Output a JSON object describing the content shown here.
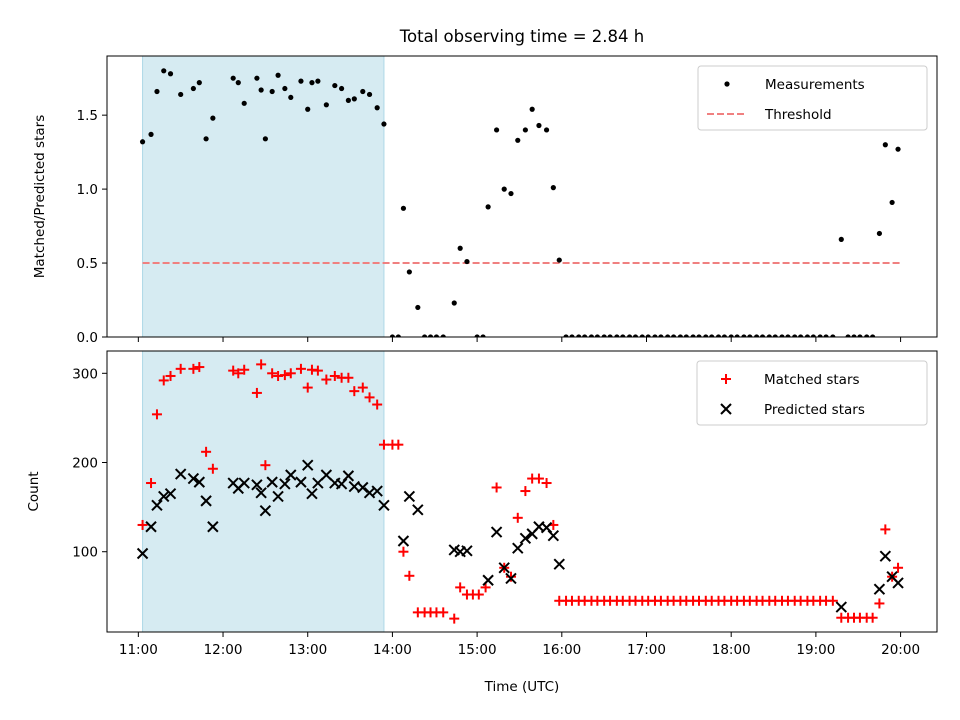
{
  "chart_data": [
    {
      "type": "scatter",
      "title": "Total observing time = 2.84 h",
      "ylabel": "Matched/Predicted stars",
      "xlabel": "",
      "xlim": [
        10.63,
        20.43
      ],
      "ylim": [
        0,
        1.9
      ],
      "x_ticks": [
        11,
        12,
        13,
        14,
        15,
        16,
        17,
        18,
        19,
        20
      ],
      "x_tick_labels": [
        "",
        "",
        "",
        "",
        "",
        "",
        "",
        "",
        "",
        ""
      ],
      "y_ticks": [
        0.0,
        0.5,
        1.0,
        1.5
      ],
      "y_tick_labels": [
        "0.0",
        "0.5",
        "1.0",
        "1.5"
      ],
      "shaded_span": [
        11.05,
        13.9
      ],
      "legend": {
        "position": "top-right",
        "entries": [
          "Measurements",
          "Threshold"
        ]
      },
      "threshold": {
        "name": "Threshold",
        "y": 0.5,
        "x_range": [
          11.05,
          20.0
        ],
        "color": "#f08080"
      },
      "series": [
        {
          "name": "Measurements",
          "marker": "dot",
          "color": "#000000",
          "x": [
            11.05,
            11.15,
            11.22,
            11.3,
            11.38,
            11.5,
            11.65,
            11.72,
            11.8,
            11.88,
            12.12,
            12.18,
            12.25,
            12.4,
            12.45,
            12.5,
            12.58,
            12.65,
            12.73,
            12.8,
            12.92,
            13.0,
            13.05,
            13.12,
            13.22,
            13.32,
            13.4,
            13.48,
            13.55,
            13.65,
            13.73,
            13.82,
            13.9,
            14.0,
            14.07,
            14.13,
            14.2,
            14.3,
            14.38,
            14.45,
            14.52,
            14.6,
            14.73,
            14.8,
            14.88,
            15.0,
            15.07,
            15.13,
            15.23,
            15.32,
            15.4,
            15.48,
            15.57,
            15.65,
            15.73,
            15.82,
            15.9,
            15.97,
            16.05,
            16.12,
            16.2,
            16.27,
            16.35,
            16.42,
            16.5,
            16.57,
            16.65,
            16.72,
            16.8,
            16.87,
            16.95,
            17.02,
            17.1,
            17.17,
            17.25,
            17.32,
            17.4,
            17.47,
            17.55,
            17.62,
            17.7,
            17.77,
            17.85,
            17.92,
            18.0,
            18.07,
            18.15,
            18.22,
            18.3,
            18.37,
            18.45,
            18.52,
            18.6,
            18.67,
            18.75,
            18.82,
            18.9,
            18.97,
            19.05,
            19.12,
            19.2,
            19.3,
            19.38,
            19.45,
            19.52,
            19.6,
            19.67,
            19.75,
            19.82,
            19.9,
            19.97
          ],
          "y": [
            1.32,
            1.37,
            1.66,
            1.8,
            1.78,
            1.64,
            1.68,
            1.72,
            1.34,
            1.48,
            1.75,
            1.72,
            1.58,
            1.75,
            1.67,
            1.34,
            1.66,
            1.77,
            1.68,
            1.62,
            1.73,
            1.54,
            1.72,
            1.73,
            1.57,
            1.7,
            1.68,
            1.6,
            1.61,
            1.66,
            1.64,
            1.55,
            1.44,
            0.0,
            0.0,
            0.87,
            0.44,
            0.2,
            0.0,
            0.0,
            0.0,
            0.0,
            0.23,
            0.6,
            0.51,
            0.0,
            0.0,
            0.88,
            1.4,
            1.0,
            0.97,
            1.33,
            1.4,
            1.54,
            1.43,
            1.4,
            1.01,
            0.52,
            0.0,
            0.0,
            0.0,
            0.0,
            0.0,
            0.0,
            0.0,
            0.0,
            0.0,
            0.0,
            0.0,
            0.0,
            0.0,
            0.0,
            0.0,
            0.0,
            0.0,
            0.0,
            0.0,
            0.0,
            0.0,
            0.0,
            0.0,
            0.0,
            0.0,
            0.0,
            0.0,
            0.0,
            0.0,
            0.0,
            0.0,
            0.0,
            0.0,
            0.0,
            0.0,
            0.0,
            0.0,
            0.0,
            0.0,
            0.0,
            0.0,
            0.0,
            0.0,
            0.66,
            0.0,
            0.0,
            0.0,
            0.0,
            0.0,
            0.7,
            1.3,
            0.91,
            1.27
          ]
        }
      ]
    },
    {
      "type": "scatter",
      "title": "",
      "ylabel": "Count",
      "xlabel": "Time (UTC)",
      "xlim": [
        10.63,
        20.43
      ],
      "ylim": [
        10,
        325
      ],
      "x_ticks": [
        11,
        12,
        13,
        14,
        15,
        16,
        17,
        18,
        19,
        20
      ],
      "x_tick_labels": [
        "11:00",
        "12:00",
        "13:00",
        "14:00",
        "15:00",
        "16:00",
        "17:00",
        "18:00",
        "19:00",
        "20:00"
      ],
      "y_ticks": [
        100,
        200,
        300
      ],
      "y_tick_labels": [
        "100",
        "200",
        "300"
      ],
      "shaded_span": [
        11.05,
        13.9
      ],
      "legend": {
        "position": "top-right",
        "entries": [
          "Matched stars",
          "Predicted stars"
        ]
      },
      "series": [
        {
          "name": "Matched stars",
          "marker": "plus",
          "color": "#ff0000",
          "x": [
            11.05,
            11.15,
            11.22,
            11.3,
            11.38,
            11.5,
            11.65,
            11.72,
            11.8,
            11.88,
            12.12,
            12.18,
            12.25,
            12.4,
            12.45,
            12.5,
            12.58,
            12.65,
            12.73,
            12.8,
            12.92,
            13.0,
            13.05,
            13.12,
            13.22,
            13.32,
            13.4,
            13.48,
            13.55,
            13.65,
            13.73,
            13.82,
            13.9,
            14.0,
            14.07,
            14.13,
            14.2,
            14.3,
            14.38,
            14.45,
            14.52,
            14.6,
            14.73,
            14.8,
            14.88,
            14.95,
            15.02,
            15.1,
            15.23,
            15.32,
            15.4,
            15.48,
            15.57,
            15.65,
            15.73,
            15.82,
            15.9,
            15.97,
            16.05,
            16.12,
            16.2,
            16.27,
            16.35,
            16.42,
            16.5,
            16.57,
            16.65,
            16.72,
            16.8,
            16.87,
            16.95,
            17.02,
            17.1,
            17.17,
            17.25,
            17.32,
            17.4,
            17.47,
            17.55,
            17.62,
            17.7,
            17.77,
            17.85,
            17.92,
            18.0,
            18.07,
            18.15,
            18.22,
            18.3,
            18.37,
            18.45,
            18.52,
            18.6,
            18.67,
            18.75,
            18.82,
            18.9,
            18.97,
            19.05,
            19.12,
            19.2,
            19.3,
            19.38,
            19.45,
            19.52,
            19.6,
            19.67,
            19.75,
            19.82,
            19.9,
            19.97
          ],
          "y": [
            130,
            177,
            254,
            292,
            297,
            305,
            305,
            307,
            212,
            193,
            303,
            300,
            304,
            278,
            310,
            197,
            300,
            297,
            298,
            300,
            305,
            284,
            304,
            303,
            293,
            297,
            295,
            295,
            280,
            284,
            273,
            265,
            220,
            220,
            220,
            100,
            73,
            32,
            32,
            32,
            32,
            32,
            25,
            60,
            52,
            52,
            52,
            60,
            172,
            82,
            72,
            138,
            168,
            182,
            182,
            177,
            130,
            45,
            45,
            45,
            45,
            45,
            45,
            45,
            45,
            45,
            45,
            45,
            45,
            45,
            45,
            45,
            45,
            45,
            45,
            45,
            45,
            45,
            45,
            45,
            45,
            45,
            45,
            45,
            45,
            45,
            45,
            45,
            45,
            45,
            45,
            45,
            45,
            45,
            45,
            45,
            45,
            45,
            45,
            45,
            45,
            26,
            26,
            26,
            26,
            26,
            26,
            42,
            125,
            72,
            82
          ]
        },
        {
          "name": "Predicted stars",
          "marker": "x",
          "color": "#000000",
          "x": [
            11.05,
            11.15,
            11.22,
            11.3,
            11.38,
            11.5,
            11.65,
            11.72,
            11.8,
            11.88,
            12.12,
            12.18,
            12.25,
            12.4,
            12.45,
            12.5,
            12.58,
            12.65,
            12.73,
            12.8,
            12.92,
            13.0,
            13.05,
            13.12,
            13.22,
            13.32,
            13.4,
            13.48,
            13.55,
            13.65,
            13.73,
            13.82,
            13.9,
            14.13,
            14.2,
            14.3,
            14.73,
            14.8,
            14.88,
            15.13,
            15.23,
            15.32,
            15.4,
            15.48,
            15.57,
            15.65,
            15.73,
            15.82,
            15.9,
            15.97,
            19.3,
            19.75,
            19.82,
            19.9,
            19.97
          ],
          "y": [
            98,
            128,
            152,
            162,
            165,
            187,
            182,
            178,
            157,
            128,
            177,
            171,
            177,
            175,
            166,
            146,
            178,
            162,
            176,
            186,
            178,
            197,
            165,
            177,
            186,
            177,
            176,
            185,
            173,
            172,
            166,
            168,
            152,
            112,
            162,
            147,
            102,
            100,
            101,
            68,
            122,
            82,
            70,
            104,
            115,
            120,
            128,
            127,
            118,
            86,
            38,
            58,
            95,
            72,
            65
          ]
        }
      ]
    }
  ]
}
